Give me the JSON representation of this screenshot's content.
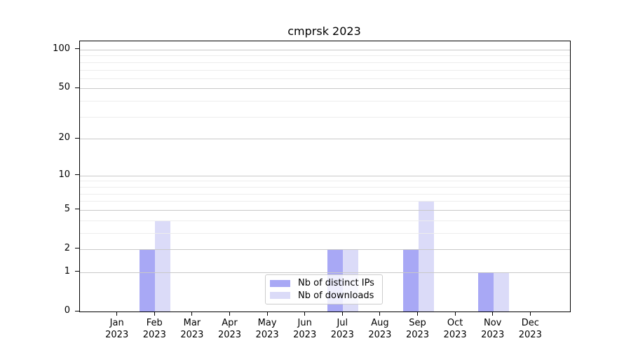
{
  "title": "cmprsk 2023",
  "chart_data": {
    "type": "bar",
    "title": "cmprsk 2023",
    "x_axis": {
      "months": [
        "Jan",
        "Feb",
        "Mar",
        "Apr",
        "May",
        "Jun",
        "Jul",
        "Aug",
        "Sep",
        "Oct",
        "Nov",
        "Dec"
      ],
      "year": "2023"
    },
    "y_axis": {
      "scale": "log1p",
      "major_ticks": [
        100,
        50,
        20,
        10,
        5,
        2,
        1,
        0
      ],
      "minor_gridlines": [
        3,
        4,
        6,
        7,
        8,
        9,
        30,
        40,
        60,
        70,
        80,
        90
      ]
    },
    "series": [
      {
        "name": "Nb of distinct IPs",
        "color": "#a8a8f5",
        "values": [
          0,
          2,
          0,
          0,
          0,
          0,
          2,
          0,
          2,
          0,
          1,
          0
        ]
      },
      {
        "name": "Nb of downloads",
        "color": "#dbdbf8",
        "values": [
          0,
          4,
          0,
          0,
          0,
          0,
          2,
          0,
          6,
          0,
          1,
          0
        ]
      }
    ],
    "legend": {
      "position": "lower center",
      "entries": [
        "Nb of distinct IPs",
        "Nb of downloads"
      ]
    },
    "colors": {
      "major_grid": "#c9c9c9",
      "minor_grid": "#ededed",
      "axis": "#000000",
      "legend_border": "#cccccc"
    }
  }
}
